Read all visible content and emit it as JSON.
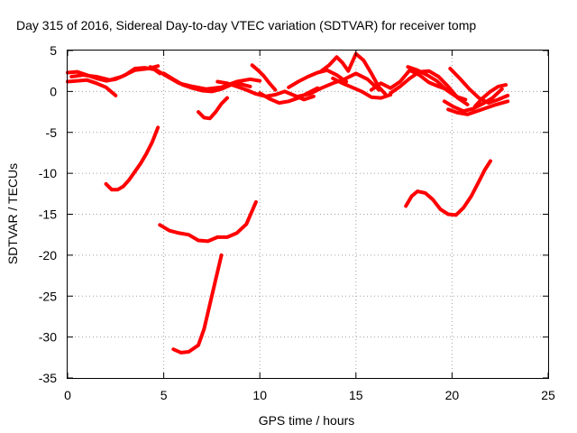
{
  "chart_data": {
    "type": "line",
    "title": "Day 315 of 2016, Sidereal Day-to-day VTEC variation (SDTVAR) for receiver tomp",
    "xlabel": "GPS time / hours",
    "ylabel": "SDTVAR / TECUs",
    "xlim": [
      0,
      25
    ],
    "ylim": [
      -35,
      5
    ],
    "xticks": [
      0,
      5,
      10,
      15,
      20,
      25
    ],
    "yticks": [
      5,
      0,
      -5,
      -10,
      -15,
      -20,
      -25,
      -30,
      -35
    ],
    "grid": true,
    "legend": "none",
    "series_color": "#ff0000",
    "series": [
      {
        "x": [
          0.0,
          0.5,
          1.0,
          1.5,
          2.0,
          2.5,
          3.0,
          3.5,
          4.0,
          4.5,
          4.8
        ],
        "y": [
          2.3,
          2.4,
          2.0,
          1.6,
          1.3,
          1.5,
          2.0,
          2.8,
          2.9,
          2.7,
          2.2
        ]
      },
      {
        "x": [
          0.0,
          0.5,
          1.0,
          1.5,
          2.0,
          2.5
        ],
        "y": [
          1.2,
          1.3,
          1.4,
          1.0,
          0.5,
          -0.5
        ]
      },
      {
        "x": [
          0.2,
          0.8,
          1.5,
          2.2,
          2.8,
          3.5,
          4.2,
          4.7
        ],
        "y": [
          1.8,
          2.0,
          1.8,
          1.4,
          1.8,
          2.6,
          2.8,
          3.1
        ]
      },
      {
        "x": [
          4.3,
          4.7,
          5.2,
          5.8,
          6.5,
          7.2,
          8.0,
          8.8,
          9.5,
          10.0
        ],
        "y": [
          3.0,
          2.5,
          1.8,
          1.0,
          0.6,
          0.3,
          0.5,
          1.2,
          1.5,
          1.3
        ]
      },
      {
        "x": [
          5.0,
          5.5,
          6.0,
          6.5,
          7.0,
          7.5,
          8.0,
          8.5,
          9.0,
          9.5
        ],
        "y": [
          2.2,
          1.5,
          0.8,
          0.4,
          0.1,
          0.0,
          0.3,
          0.8,
          0.9,
          0.6
        ]
      },
      {
        "x": [
          6.8,
          7.1,
          7.4,
          7.7,
          8.0,
          8.3
        ],
        "y": [
          -2.5,
          -3.2,
          -3.3,
          -2.5,
          -1.5,
          -0.8
        ]
      },
      {
        "x": [
          7.8,
          8.3,
          8.8,
          9.3,
          9.8,
          10.3,
          10.8,
          11.3,
          11.8,
          12.3,
          12.8
        ],
        "y": [
          1.2,
          1.0,
          0.6,
          0.2,
          -0.3,
          -0.6,
          -0.4,
          0.0,
          -0.5,
          -1.0,
          -0.6
        ]
      },
      {
        "x": [
          9.6,
          9.9,
          10.2,
          10.5,
          10.8
        ],
        "y": [
          3.2,
          2.6,
          1.9,
          1.0,
          0.2
        ]
      },
      {
        "x": [
          10.0,
          10.5,
          11.0,
          11.5,
          12.0,
          12.5,
          13.0
        ],
        "y": [
          -0.2,
          -0.9,
          -1.4,
          -1.2,
          -0.8,
          -0.2,
          0.4
        ]
      },
      {
        "x": [
          11.5,
          12.0,
          12.5,
          13.0,
          13.5,
          14.0,
          14.5
        ],
        "y": [
          0.5,
          1.2,
          1.8,
          2.3,
          2.6,
          2.0,
          1.2
        ]
      },
      {
        "x": [
          13.2,
          13.6,
          14.0,
          14.3,
          14.6,
          15.0,
          15.4,
          15.8,
          16.2,
          16.6
        ],
        "y": [
          2.5,
          3.2,
          4.2,
          3.5,
          2.5,
          4.6,
          3.8,
          2.2,
          0.5,
          -0.5
        ]
      },
      {
        "x": [
          13.8,
          14.3,
          14.8,
          15.3,
          15.8,
          16.3,
          16.8
        ],
        "y": [
          1.6,
          1.0,
          0.5,
          0.0,
          -0.7,
          -0.8,
          -0.4
        ]
      },
      {
        "x": [
          12.0,
          12.6,
          13.2,
          13.8,
          14.4,
          15.0,
          15.6,
          16.2
        ],
        "y": [
          -0.6,
          -0.3,
          0.4,
          1.0,
          1.5,
          2.2,
          1.5,
          0.2
        ]
      },
      {
        "x": [
          15.8,
          16.3,
          16.8,
          17.3,
          17.8,
          18.3,
          18.8,
          19.3,
          19.8
        ],
        "y": [
          0.2,
          1.0,
          0.4,
          1.2,
          2.6,
          2.0,
          1.1,
          0.6,
          0.2
        ]
      },
      {
        "x": [
          16.8,
          17.3,
          17.8,
          18.3,
          18.8,
          19.3,
          19.8,
          20.3,
          20.8
        ],
        "y": [
          -0.2,
          0.6,
          1.6,
          2.4,
          2.5,
          1.8,
          0.6,
          -0.8,
          -1.6
        ]
      },
      {
        "x": [
          17.7,
          18.2,
          18.7,
          19.2,
          19.7,
          20.2,
          20.7
        ],
        "y": [
          3.0,
          2.6,
          2.0,
          1.3,
          0.2,
          -0.6,
          -1.0
        ]
      },
      {
        "x": [
          19.6,
          20.1,
          20.6,
          21.1,
          21.6,
          22.1,
          22.6
        ],
        "y": [
          -1.2,
          -1.9,
          -2.4,
          -2.1,
          -1.5,
          -0.8,
          0.3
        ]
      },
      {
        "x": [
          19.8,
          20.3,
          20.8,
          21.3,
          21.8,
          22.3,
          22.9
        ],
        "y": [
          -2.2,
          -2.6,
          -2.8,
          -2.4,
          -2.0,
          -1.6,
          -1.2
        ]
      },
      {
        "x": [
          19.9,
          20.4,
          20.9,
          21.4,
          21.9,
          22.4,
          22.9
        ],
        "y": [
          2.8,
          1.6,
          0.3,
          -0.8,
          -1.4,
          -1.0,
          -0.5
        ]
      },
      {
        "x": [
          21.2,
          21.6,
          22.0,
          22.4,
          22.8
        ],
        "y": [
          -1.8,
          -0.8,
          0.0,
          0.6,
          0.8
        ]
      },
      {
        "x": [
          2.0,
          2.3,
          2.6,
          2.9,
          3.2,
          3.5,
          3.8,
          4.1,
          4.4,
          4.7
        ],
        "y": [
          -11.3,
          -12.0,
          -12.0,
          -11.6,
          -10.8,
          -9.8,
          -8.8,
          -7.6,
          -6.2,
          -4.4
        ]
      },
      {
        "x": [
          4.8,
          5.3,
          5.8,
          6.3,
          6.8,
          7.3,
          7.8,
          8.3,
          8.8,
          9.3,
          9.8
        ],
        "y": [
          -16.3,
          -17.0,
          -17.3,
          -17.5,
          -18.2,
          -18.3,
          -17.8,
          -17.8,
          -17.3,
          -16.2,
          -13.5
        ]
      },
      {
        "x": [
          5.5,
          5.9,
          6.3,
          6.8,
          7.1,
          7.4,
          7.7,
          8.0
        ],
        "y": [
          -31.5,
          -31.9,
          -31.8,
          -31.0,
          -29.0,
          -26.0,
          -23.0,
          -20.0
        ]
      },
      {
        "x": [
          17.6,
          17.9,
          18.2,
          18.6,
          19.0,
          19.4,
          19.8,
          20.2,
          20.6,
          21.0,
          21.4,
          21.7,
          22.0
        ],
        "y": [
          -14.0,
          -12.8,
          -12.2,
          -12.4,
          -13.2,
          -14.4,
          -15.0,
          -15.1,
          -14.2,
          -12.8,
          -11.0,
          -9.6,
          -8.5
        ]
      }
    ]
  }
}
